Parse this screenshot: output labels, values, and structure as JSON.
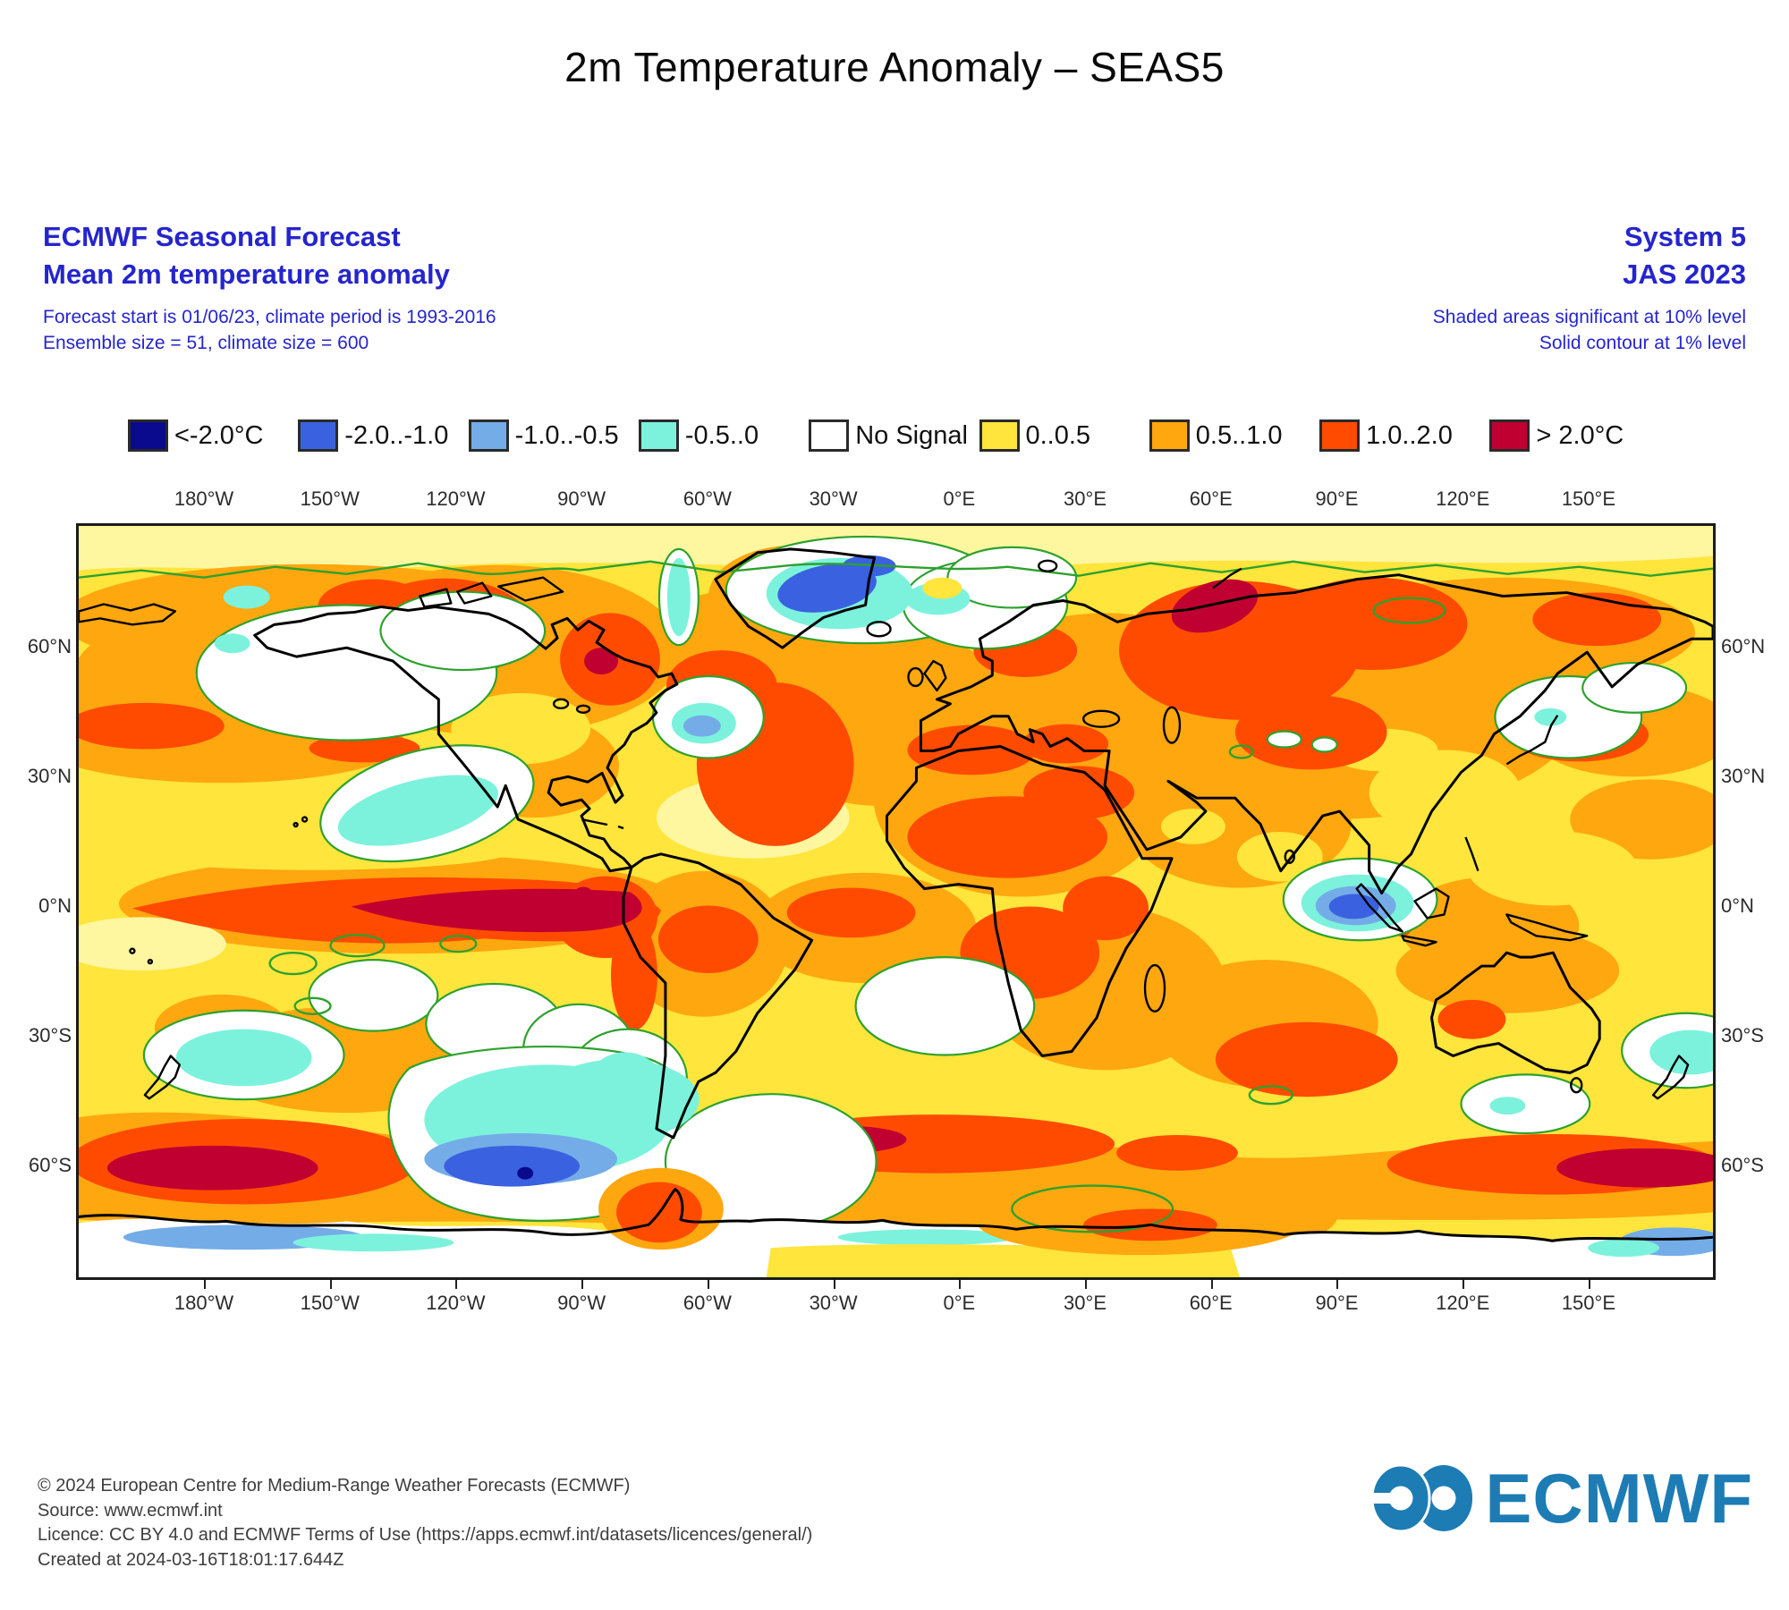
{
  "title": "2m Temperature Anomaly – SEAS5",
  "header": {
    "text_color": "#2525CD",
    "left": {
      "title": "ECMWF Seasonal Forecast",
      "subtitle": "Mean 2m temperature anomaly",
      "details": [
        "Forecast start is 01/06/23, climate period is 1993-2016",
        "Ensemble size = 51, climate size = 600"
      ]
    },
    "right": {
      "title": "System 5",
      "subtitle": "JAS 2023",
      "details": [
        "Shaded areas significant at 10% level",
        "Solid contour at 1% level"
      ]
    }
  },
  "legend": {
    "items": [
      {
        "label": "<-2.0°C",
        "color": "#0A0A8E"
      },
      {
        "label": "-2.0..-1.0",
        "color": "#3A62E0"
      },
      {
        "label": "-1.0..-0.5",
        "color": "#74ACE8"
      },
      {
        "label": "-0.5..0",
        "color": "#7CF2DC"
      },
      {
        "label": "No Signal",
        "color": "#FFFFFF"
      },
      {
        "label": "0..0.5",
        "color": "#FFE53C"
      },
      {
        "label": "0.5..1.0",
        "color": "#FFA70F"
      },
      {
        "label": "1.0..2.0",
        "color": "#FF4B00"
      },
      {
        "label": "> 2.0°C",
        "color": "#BF0030"
      }
    ]
  },
  "map": {
    "axis": {
      "top": [
        "180°W",
        "150°W",
        "120°W",
        "90°W",
        "60°W",
        "30°W",
        "0°E",
        "30°E",
        "60°E",
        "90°E",
        "120°E",
        "150°E"
      ],
      "bottom": [
        "180°W",
        "150°W",
        "120°W",
        "90°W",
        "60°W",
        "30°W",
        "0°E",
        "30°E",
        "60°E",
        "90°E",
        "120°E",
        "150°E"
      ],
      "left": [
        "60°N",
        "30°N",
        "0°N",
        "30°S",
        "60°S"
      ],
      "right": [
        "60°N",
        "30°N",
        "0°N",
        "30°S",
        "60°S"
      ]
    },
    "palette": {
      "base_yellow": "#FFE53C",
      "pale_yellow": "#FFF6A0",
      "orange": "#FFA70F",
      "red": "#FF4B00",
      "dark_red": "#BF0030",
      "cyan": "#7CF2DC",
      "light_blue": "#74ACE8",
      "blue": "#3A62E0",
      "navy": "#0A0A8E",
      "no_signal": "#FFFFFF",
      "significance_contour_green": "#2DA12D",
      "coastline": "#000000"
    }
  },
  "chart_data": {
    "type": "map",
    "projection": "equirectangular global",
    "title": "2m Temperature Anomaly – SEAS5",
    "variable": "Mean 2m temperature anomaly (°C)",
    "system": "System 5",
    "season": "JAS 2023",
    "forecast_start": "01/06/23",
    "climate_period": "1993-2016",
    "ensemble_size": 51,
    "climate_size": 600,
    "significance": {
      "shaded": "10% level",
      "solid_contour": "1% level"
    },
    "legend_bins": [
      "<-2.0°C",
      "-2.0..-1.0",
      "-1.0..-0.5",
      "-0.5..0",
      "No Signal",
      "0..0.5",
      "0.5..1.0",
      "1.0..2.0",
      "> 2.0°C"
    ],
    "longitude_ticks": [
      "180°W",
      "150°W",
      "120°W",
      "90°W",
      "60°W",
      "30°W",
      "0°E",
      "30°E",
      "60°E",
      "90°E",
      "120°E",
      "150°E"
    ],
    "latitude_ticks": [
      "60°N",
      "30°N",
      "0°N",
      "30°S",
      "60°S"
    ],
    "visible_features": [
      "Warm anomalies (0.5–2°C) dominate most continents and mid-latitude oceans",
      ">2°C tongue along equatorial eastern Pacific off South America (El Niño pattern)",
      ">2°C spots: Kara Sea, eastern Canada, Amazon, Southern Ocean near 180°W and 30°W–0°E and 150°E at ~60°S",
      "Negative anomalies (cyan/blue) in Greenland–Norwegian Sea, south of Greenland, Southern Ocean ~90–120°W 60°S, west of Sumatra, east of New Zealand, off California coast",
      "No-signal white areas over North Pacific, Sea of Okhotsk, parts of South Pacific/Atlantic and Antarctica"
    ]
  },
  "footer": {
    "lines": [
      "© 2024 European Centre for Medium-Range Weather Forecasts (ECMWF)",
      "Source: www.ecmwf.int",
      "Licence: CC BY 4.0 and ECMWF Terms of Use (https://apps.ecmwf.int/datasets/licences/general/)",
      "Created at 2024-03-16T18:01:17.644Z"
    ]
  },
  "logo": {
    "text": "ECMWF",
    "color": "#1D7CB4"
  }
}
